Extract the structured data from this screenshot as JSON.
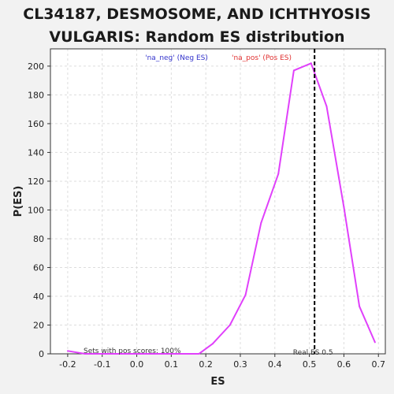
{
  "title_lines": [
    "CL34187, DESMOSOME, AND ICHTHYOSIS",
    "VULGARIS: Random ES distribution"
  ],
  "chart_data": {
    "type": "line",
    "title": "CL34187, DESMOSOME, AND ICHTHYOSIS VULGARIS: Random ES distribution",
    "xlabel": "ES",
    "ylabel": "P(ES)",
    "xlim": [
      -0.25,
      0.72
    ],
    "ylim": [
      0,
      212
    ],
    "x_ticks": [
      -0.2,
      -0.1,
      0.0,
      0.1,
      0.2,
      0.3,
      0.4,
      0.5,
      0.6,
      0.7
    ],
    "x_tick_labels": [
      "-0.2",
      "-0.1",
      "0.0",
      "0.1",
      "0.2",
      "0.3",
      "0.4",
      "0.5",
      "0.6",
      "0.7"
    ],
    "y_ticks": [
      0,
      20,
      40,
      60,
      80,
      100,
      120,
      140,
      160,
      180,
      200
    ],
    "y_tick_labels": [
      "0",
      "20",
      "40",
      "60",
      "80",
      "100",
      "120",
      "140",
      "160",
      "180",
      "200"
    ],
    "grid": true,
    "series": [
      {
        "color": "#e040fb",
        "x": [
          -0.2,
          -0.15,
          -0.1,
          -0.05,
          0.0,
          0.05,
          0.1,
          0.14,
          0.18,
          0.22,
          0.27,
          0.315,
          0.36,
          0.41,
          0.455,
          0.505,
          0.55,
          0.6,
          0.645,
          0.69
        ],
        "y": [
          2,
          0,
          0,
          0,
          0,
          0,
          0,
          0,
          0,
          7,
          20,
          41,
          91,
          125,
          197,
          202,
          172,
          102,
          33,
          8
        ]
      }
    ],
    "vline": {
      "x": 0.515,
      "label": "Real ES 0.5",
      "color": "#000000"
    },
    "annotations": {
      "neg_label": "'na_neg' (Neg ES)",
      "neg_color": "#3333cc",
      "pos_label": "'na_pos' (Pos ES)",
      "pos_color": "#e03030",
      "sets_label": "Sets with pos scores: 100%"
    }
  }
}
